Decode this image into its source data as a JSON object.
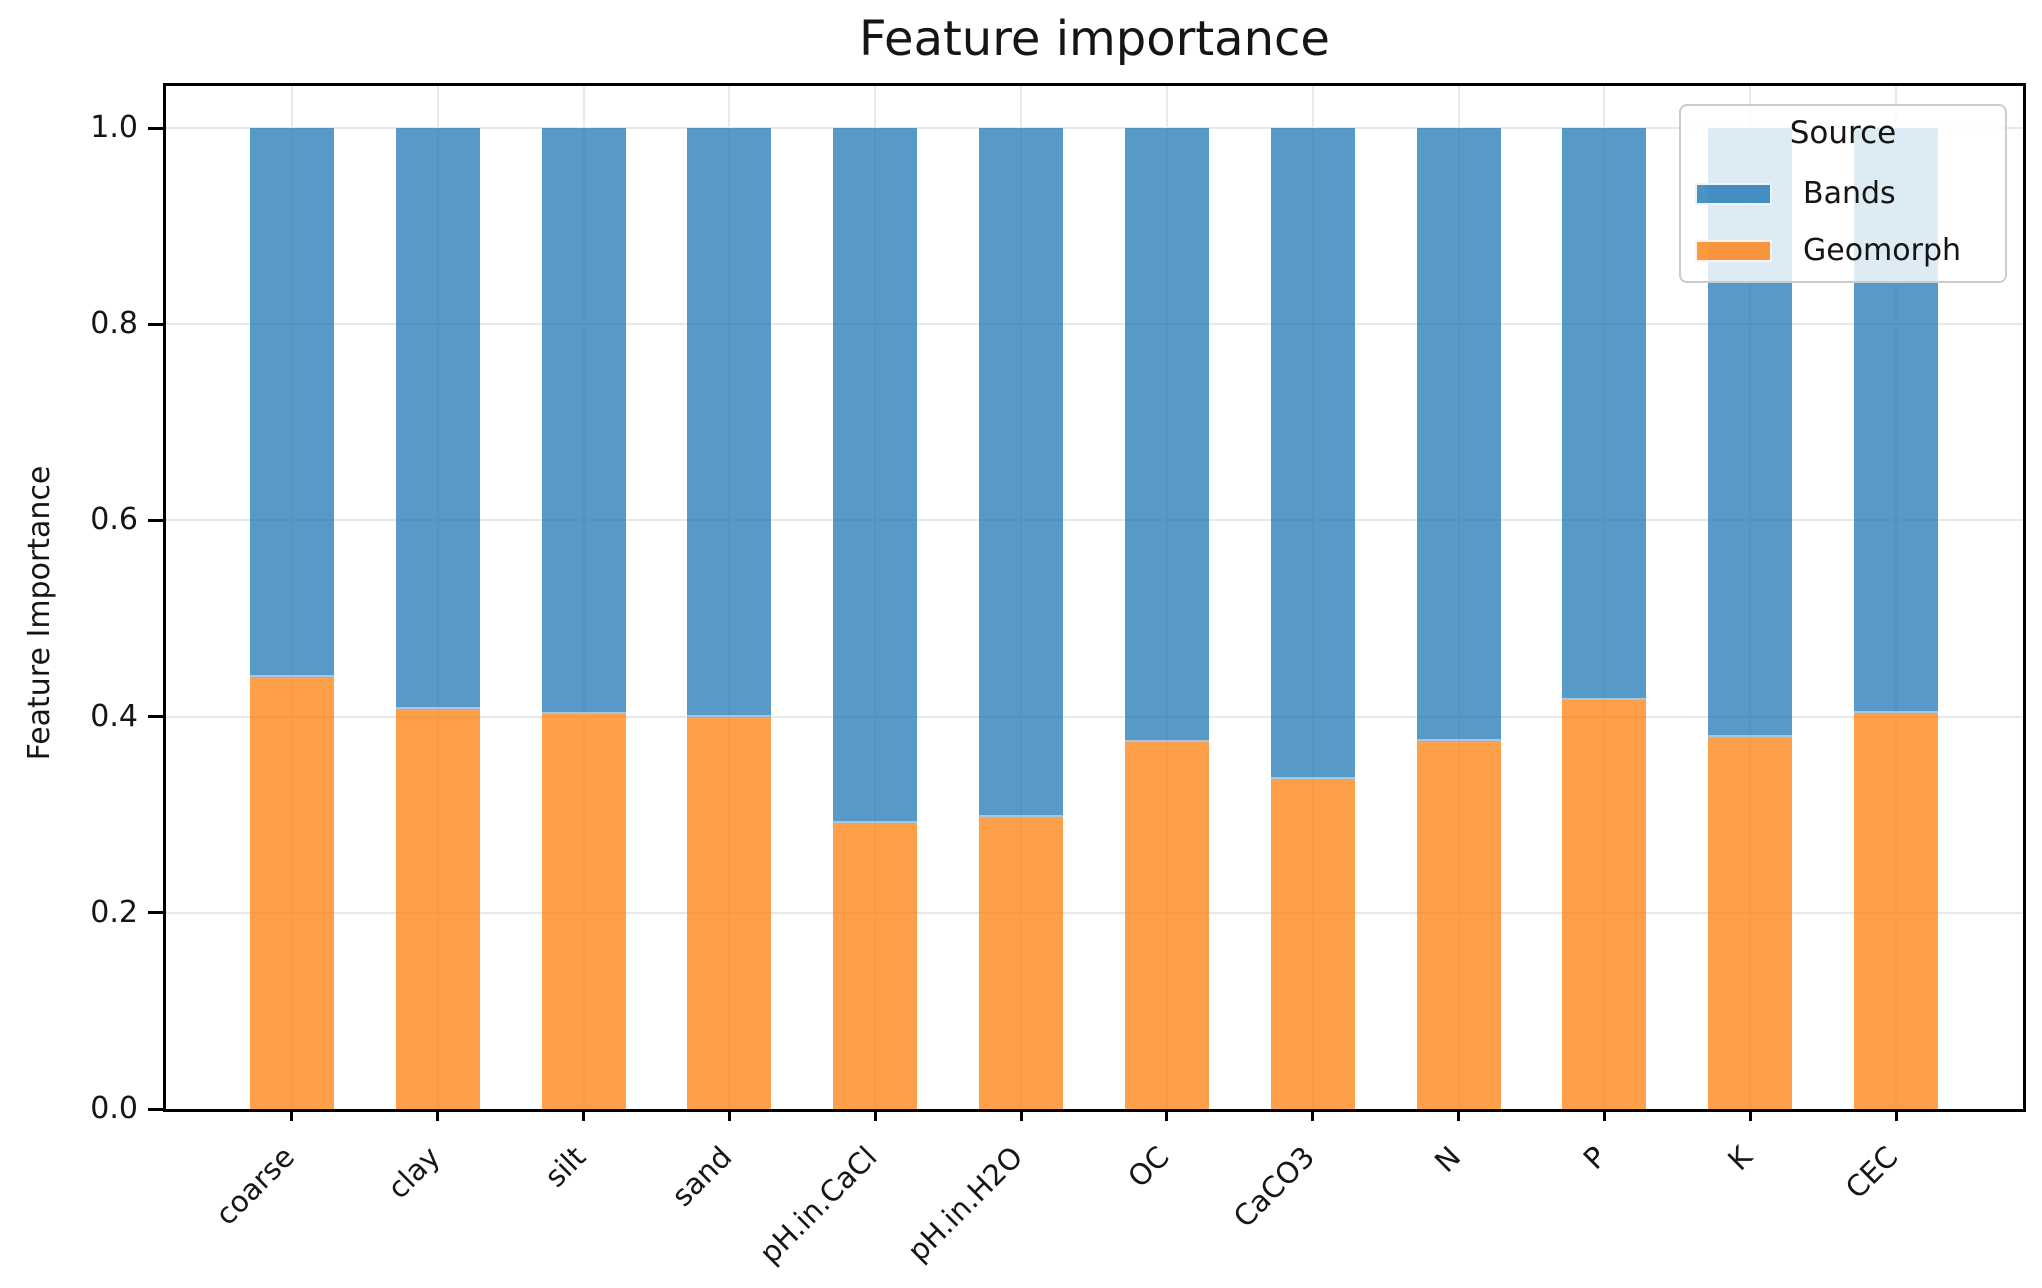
{
  "figure": {
    "title": "Feature importance",
    "ylabel": "Feature Importance"
  },
  "legend": {
    "title": "Source",
    "items": [
      {
        "label": "Bands",
        "color": "#1f77b4"
      },
      {
        "label": "Geomorph",
        "color": "#ff7f0e"
      }
    ]
  },
  "chart_data": {
    "type": "bar",
    "stacked": true,
    "title": "Feature importance",
    "xlabel": "",
    "ylabel": "Feature Importance",
    "categories": [
      "coarse",
      "clay",
      "silt",
      "sand",
      "pH.in.CaCl",
      "pH.in.H2O",
      "OC",
      "CaCO3",
      "N",
      "P",
      "K",
      "CEC"
    ],
    "series": [
      {
        "name": "Bands",
        "color": "#1f77b4",
        "alpha": 0.75,
        "values": [
          0.56,
          0.592,
          0.597,
          0.6,
          0.708,
          0.702,
          0.626,
          0.664,
          0.625,
          0.583,
          0.621,
          0.596
        ]
      },
      {
        "name": "Geomorph",
        "color": "#ff7f0e",
        "alpha": 0.75,
        "values": [
          0.44,
          0.408,
          0.403,
          0.4,
          0.292,
          0.298,
          0.374,
          0.336,
          0.375,
          0.417,
          0.379,
          0.404
        ]
      }
    ],
    "stack_bottom_series": "Geomorph",
    "ylim": [
      0.0,
      1.05
    ],
    "yticks": [
      "0.0",
      "0.2",
      "0.4",
      "0.6",
      "0.8",
      "1.0"
    ],
    "grid": true,
    "legend_title": "Source",
    "legend_position": "upper right"
  }
}
